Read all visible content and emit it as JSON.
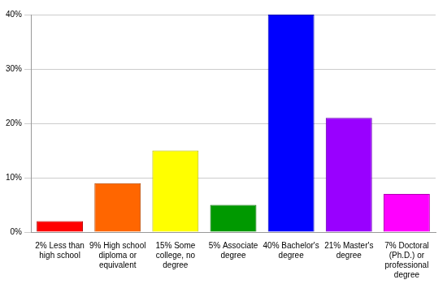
{
  "chart_data": {
    "type": "bar",
    "categories": [
      "2% Less than high school",
      "9% High school diploma or equivalent",
      "15% Some college, no degree",
      "5% Associate degree",
      "40% Bachelor's degree",
      "21% Master's degree",
      "7% Doctoral (Ph.D.) or professional degree"
    ],
    "values": [
      2,
      9,
      15,
      5,
      40,
      21,
      7
    ],
    "colors": [
      "#ff0000",
      "#ff6600",
      "#ffff00",
      "#009900",
      "#0000ff",
      "#9900ff",
      "#ff00ff"
    ],
    "ylim": [
      0,
      40
    ],
    "yticks": [
      {
        "value": 0,
        "label": "0%"
      },
      {
        "value": 10,
        "label": "10%"
      },
      {
        "value": 20,
        "label": "20%"
      },
      {
        "value": 30,
        "label": "30%"
      },
      {
        "value": 40,
        "label": "40%"
      }
    ],
    "grid": true
  }
}
